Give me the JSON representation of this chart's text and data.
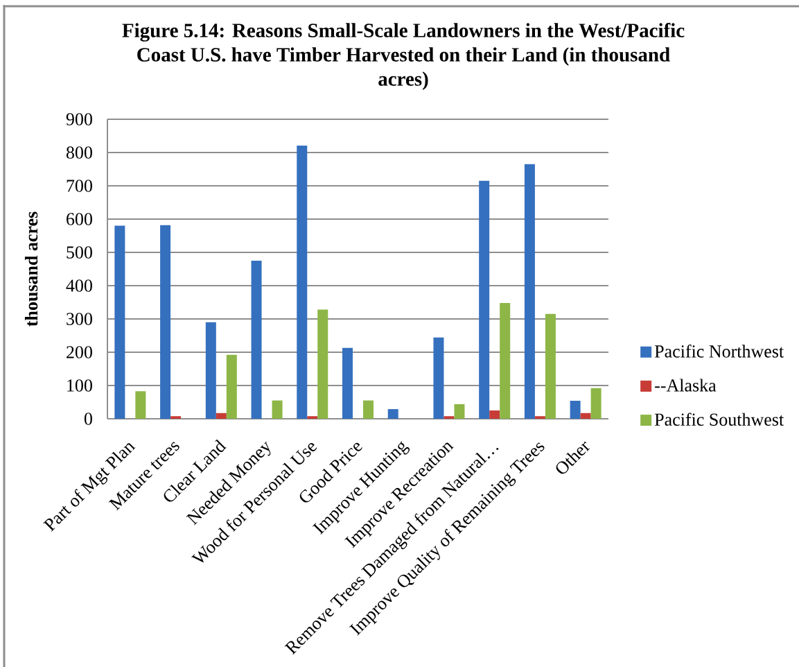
{
  "chart_data": {
    "type": "bar",
    "title": "Figure 5.14: Reasons Small-Scale Landowners in the West/Pacific Coast U.S. have Timber Harvested on their Land (in thousand acres)",
    "ylabel": "thousand acres",
    "categories": [
      "Part of Mgt Plan",
      "Mature trees",
      "Clear Land",
      "Needed Money",
      "Wood for Personal Use",
      "Good Price",
      "Improve Hunting",
      "Improve Recreation",
      "Remove Trees Damaged from Natural…",
      "Improve Quality of Remaining Trees",
      "Other"
    ],
    "series": [
      {
        "name": "Pacific Northwest",
        "color": "#3570bf",
        "values": [
          580,
          582,
          290,
          475,
          821,
          213,
          29,
          244,
          715,
          765,
          54
        ]
      },
      {
        "name": "--Alaska",
        "color": "#c83c37",
        "values": [
          null,
          8,
          17,
          null,
          8,
          null,
          null,
          8,
          25,
          8,
          17
        ]
      },
      {
        "name": "Pacific Southwest",
        "color": "#8db647",
        "values": [
          83,
          null,
          192,
          55,
          328,
          55,
          null,
          44,
          348,
          315,
          92
        ]
      }
    ],
    "ylim": [
      0,
      900
    ],
    "yticks": [
      0,
      100,
      200,
      300,
      400,
      500,
      600,
      700,
      800,
      900
    ],
    "grid": "y",
    "legend": "right"
  }
}
